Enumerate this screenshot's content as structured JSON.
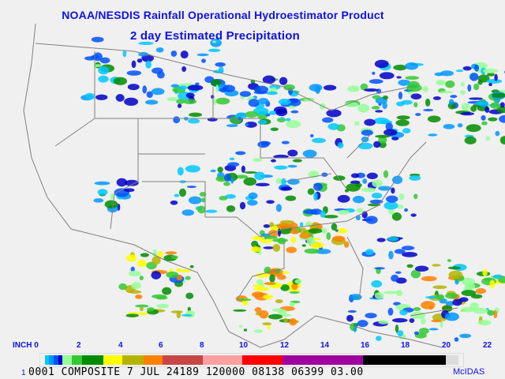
{
  "title": "NOAA/NESDIS Rainfall Operational Hydroestimator Product",
  "subtitle": "2 day Estimated Precipitation",
  "legend": {
    "unit": "INCH",
    "ticks": [
      "0",
      "2",
      "4",
      "6",
      "8",
      "10",
      "12",
      "14",
      "16",
      "18",
      "20",
      "22"
    ],
    "colors": [
      "#00c8ff",
      "#0096ff",
      "#0050ff",
      "#0000c8",
      "#96ff96",
      "#32c832",
      "#008c00",
      "#ffff00",
      "#b4b400",
      "#ff8000",
      "#c84646",
      "#ffa0a0",
      "#ff0000",
      "#a000a0",
      "#000000",
      "#dcdcdc"
    ]
  },
  "footer": {
    "frame": "1",
    "info": "0001 COMPOSITE      7 JUL 24189 120000 08138 06399 03.00",
    "software": "McIDAS"
  },
  "map_colors": {
    "background": "#f0f0f0",
    "borders": "#808080",
    "text": "#1010e8"
  }
}
